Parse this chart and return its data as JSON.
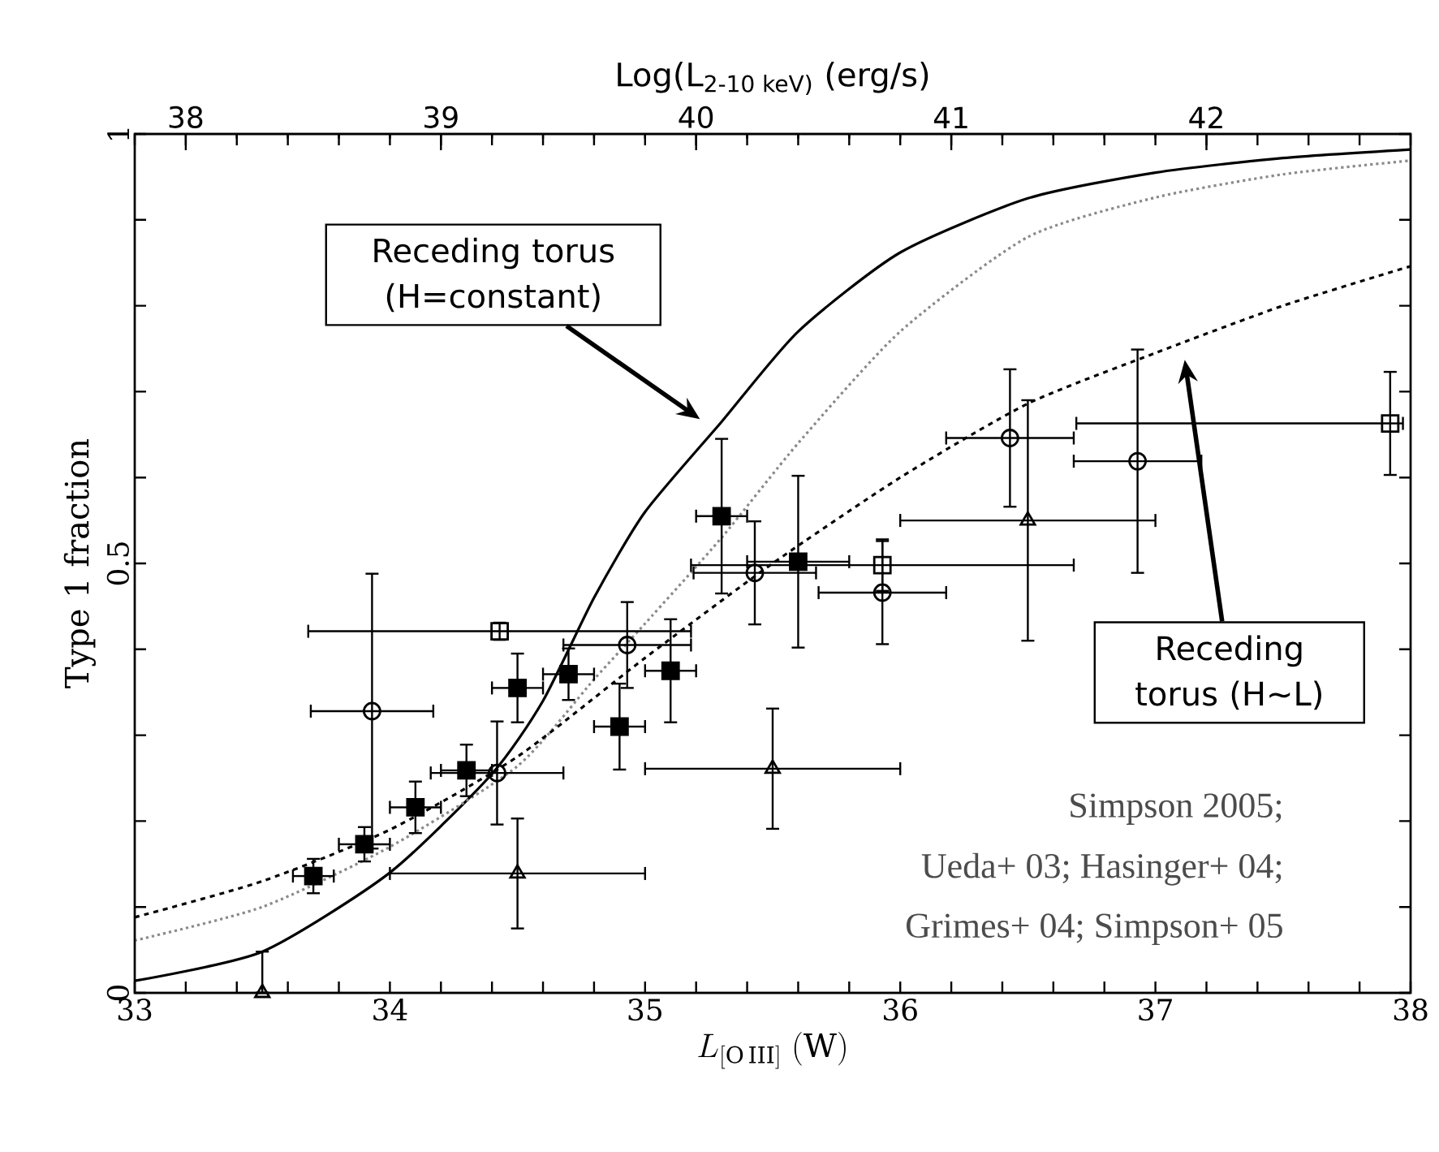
{
  "chart_data": {
    "type": "scatter",
    "x2label": "Log(L$_{2-10 keV)}$ (erg/s)",
    "xlabel": "L_{[\\mathrm{O\\,III}]}\\;(\\mathrm{W})",
    "ylabel": "Type 1 fraction",
    "xlim": [
      33,
      38
    ],
    "xticks": [
      33,
      34,
      35,
      36,
      37,
      38
    ],
    "x2lim": [
      37.8,
      42.8
    ],
    "x2ticks": [
      38,
      39,
      40,
      41,
      42
    ],
    "ylim": [
      0,
      1
    ],
    "yticks": [
      0,
      0.5,
      1
    ],
    "annotations": [
      "Receding torus (H=constant)",
      "Receding torus (H~L)",
      "Simpson 2005;",
      "Ueda+ 03; Hasinger+ 04;",
      "Grimes+ 04; Simpson+ 05"
    ],
    "series": [
      {
        "type": "line",
        "color": "#000000",
        "line_style": "solid",
        "marker": "none",
        "x": [
          33.0,
          33.5,
          34.0,
          34.4,
          34.6,
          34.8,
          35.0,
          35.3,
          35.6,
          36.0,
          36.5,
          37.0,
          37.5,
          38.0
        ],
        "values": [
          0.014,
          0.048,
          0.14,
          0.255,
          0.34,
          0.46,
          0.56,
          0.665,
          0.77,
          0.862,
          0.925,
          0.955,
          0.972,
          0.982
        ]
      },
      {
        "type": "line",
        "color": "#8a8a8a",
        "line_style": "dotted",
        "marker": "none",
        "x": [
          33.0,
          33.5,
          34.0,
          34.5,
          34.8,
          35.0,
          35.3,
          35.6,
          36.0,
          36.5,
          37.0,
          37.5,
          38.0
        ],
        "values": [
          0.061,
          0.1,
          0.17,
          0.264,
          0.365,
          0.43,
          0.53,
          0.64,
          0.77,
          0.88,
          0.926,
          0.953,
          0.969
        ]
      },
      {
        "type": "line",
        "color": "#000000",
        "line_style": "dashed",
        "marker": "none",
        "x": [
          33.0,
          33.5,
          34.0,
          34.5,
          35.0,
          35.5,
          36.0,
          36.5,
          37.0,
          37.5,
          38.0
        ],
        "values": [
          0.088,
          0.13,
          0.19,
          0.275,
          0.39,
          0.5,
          0.6,
          0.686,
          0.745,
          0.8,
          0.846
        ]
      },
      {
        "color": "#000000",
        "marker": "square",
        "x": [
          33.7,
          33.9,
          34.1,
          34.3,
          34.5,
          34.7,
          34.9,
          35.1,
          35.3,
          35.6
        ],
        "values": [
          0.136,
          0.173,
          0.216,
          0.259,
          0.355,
          0.371,
          0.31,
          0.375,
          0.555,
          0.502
        ],
        "errors": [
          0.02,
          0.02,
          0.03,
          0.03,
          0.04,
          0.03,
          0.05,
          0.06,
          0.09,
          0.1
        ],
        "xerrors": [
          0.08,
          0.1,
          0.1,
          0.1,
          0.1,
          0.1,
          0.1,
          0.1,
          0.1,
          0.2
        ]
      },
      {
        "color": "#000000",
        "marker": "circle",
        "x": [
          33.93,
          34.42,
          34.93,
          35.43,
          35.93,
          36.43,
          36.93
        ],
        "values": [
          0.328,
          0.256,
          0.405,
          0.489,
          0.466,
          0.646,
          0.619
        ],
        "errors": [
          0.16,
          0.06,
          0.05,
          0.06,
          0.06,
          0.08,
          0.13
        ],
        "xerrors": [
          0.24,
          0.26,
          0.25,
          0.24,
          0.25,
          0.25,
          0.25
        ]
      },
      {
        "color": "#000000",
        "marker": "square",
        "x": [
          34.43,
          35.93,
          37.92
        ],
        "values": [
          0.421,
          0.498,
          0.663
        ],
        "errors": [
          0.01,
          0.03,
          0.06
        ],
        "xerrors": [
          0.75,
          0.75,
          [
            36.69,
            37.97
          ]
        ]
      },
      {
        "color": "#000000",
        "marker": "triangle",
        "x": [
          33.5,
          34.5,
          35.5,
          36.5
        ],
        "values": [
          0.0,
          0.139,
          0.261,
          0.55
        ],
        "errors": [
          [
            0,
            0.048
          ],
          0.064,
          0.07,
          0.14
        ],
        "xerrors": [
          null,
          0.5,
          0.5,
          0.5
        ]
      }
    ]
  }
}
